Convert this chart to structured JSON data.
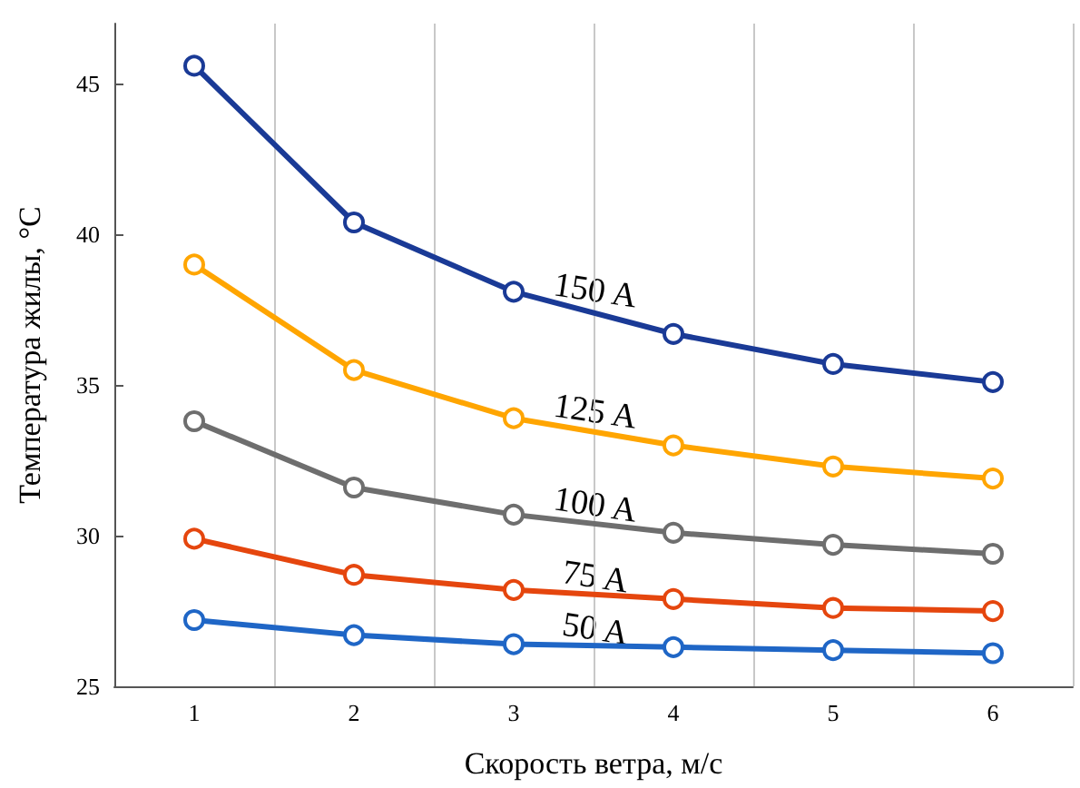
{
  "chart_data": {
    "type": "line",
    "xlabel": "Скорость ветра, м/с",
    "ylabel": "Температура жилы, °С",
    "categories": [
      "1",
      "2",
      "3",
      "4",
      "5",
      "6"
    ],
    "series": [
      {
        "color": "#1a3a96",
        "values": [
          45.6,
          40.4,
          38.1,
          36.7,
          35.7,
          35.1
        ]
      },
      {
        "color": "#ffa500",
        "values": [
          39.0,
          35.5,
          33.9,
          33.0,
          32.3,
          31.9
        ]
      },
      {
        "color": "#6e6e6e",
        "values": [
          33.8,
          31.6,
          30.7,
          30.1,
          29.7,
          29.4
        ]
      },
      {
        "color": "#e5460e",
        "values": [
          29.9,
          28.7,
          28.2,
          27.9,
          27.6,
          27.5
        ]
      },
      {
        "color": "#1f66c6",
        "values": [
          27.2,
          26.7,
          26.4,
          26.3,
          26.2,
          26.1
        ]
      }
    ],
    "annotations": [
      "150 A",
      "125 A",
      "100 A",
      "75 A",
      "50 A"
    ],
    "ylim": [
      25,
      47
    ],
    "yticks": [
      25,
      30,
      35,
      40,
      45
    ],
    "grid": "x",
    "marker": "circle",
    "line_style": "solid"
  }
}
